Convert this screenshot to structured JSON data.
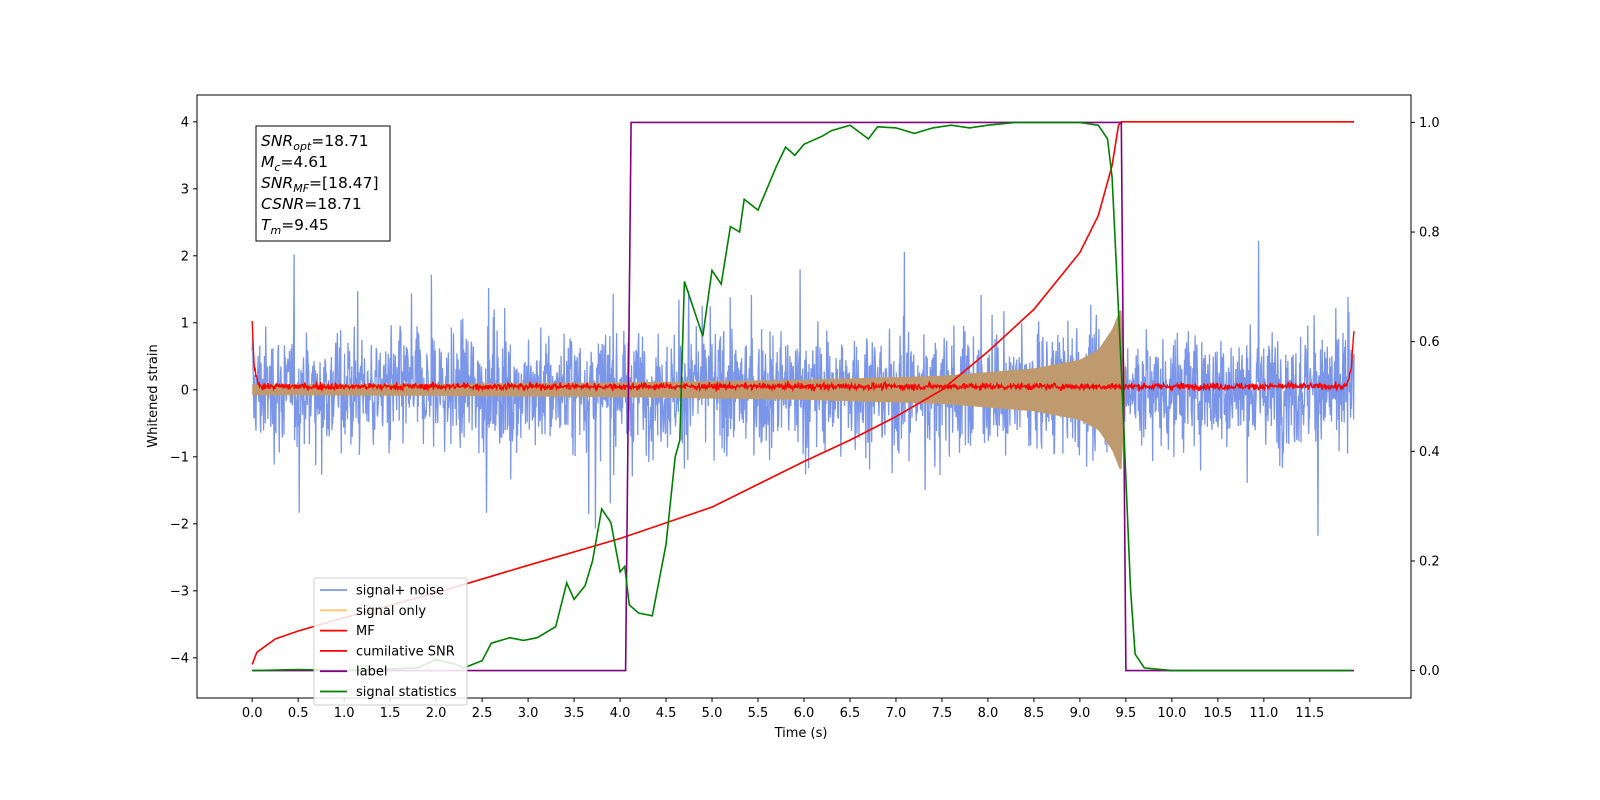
{
  "chart_data": {
    "type": "line",
    "xlabel": "Time (s)",
    "ylabel_left": "Whitened strain",
    "ylabel_right": "",
    "xlim": [
      -0.6,
      12.6
    ],
    "ylim_left": [
      -4.6,
      4.4
    ],
    "ylim_right": [
      -0.05,
      1.05
    ],
    "x_ticks": [
      0.0,
      0.5,
      1.0,
      1.5,
      2.0,
      2.5,
      3.0,
      3.5,
      4.0,
      4.5,
      5.0,
      5.5,
      6.0,
      6.5,
      7.0,
      7.5,
      8.0,
      8.5,
      9.0,
      9.5,
      10.0,
      10.5,
      11.0,
      11.5
    ],
    "x_tick_labels": [
      "0.0",
      "0.5",
      "1.0",
      "1.5",
      "2.0",
      "2.5",
      "3.0",
      "3.5",
      "4.0",
      "4.5",
      "5.0",
      "5.5",
      "6.0",
      "6.5",
      "7.0",
      "7.5",
      "8.0",
      "8.5",
      "9.0",
      "9.5",
      "10.0",
      "10.5",
      "11.0",
      "11.5"
    ],
    "y_left_ticks": [
      4,
      3,
      2,
      1,
      0,
      -1,
      -2,
      -3,
      -4
    ],
    "y_left_tick_labels": [
      "4",
      "3",
      "2",
      "1",
      "0",
      "−1",
      "−2",
      "−3",
      "−4"
    ],
    "y_right_ticks": [
      1.0,
      0.8,
      0.6,
      0.4,
      0.2,
      0.0
    ],
    "y_right_tick_labels": [
      "1.0",
      "0.8",
      "0.6",
      "0.4",
      "0.2",
      "0.0"
    ],
    "grid": false,
    "legend_position": "lower-left",
    "annotation": {
      "lines": [
        {
          "sym": "SNR",
          "sub": "opt",
          "val": "=18.71"
        },
        {
          "sym": "M",
          "sub": "c",
          "val": "=4.61"
        },
        {
          "sym": "SNR",
          "sub": "MF",
          "val": "=[18.47]"
        },
        {
          "sym": "CSNR",
          "sub": "",
          "val": "=18.71"
        },
        {
          "sym": "T",
          "sub": "m",
          "val": "=9.45"
        }
      ]
    },
    "series": [
      {
        "name": "signal+ noise",
        "axis": "left",
        "color": "#7b96e8",
        "kind": "noise-band",
        "x_range": [
          0.0,
          11.98
        ],
        "noise_amplitude_typical": 1.3,
        "noise_amplitude_max": 3.8
      },
      {
        "name": "signal only",
        "axis": "left",
        "color": "#ffc870",
        "fill_color": "#bf9a6f",
        "kind": "chirp-envelope",
        "envelope": [
          [
            0.0,
            0.08
          ],
          [
            2.0,
            0.09
          ],
          [
            4.0,
            0.11
          ],
          [
            6.0,
            0.15
          ],
          [
            7.5,
            0.21
          ],
          [
            8.5,
            0.32
          ],
          [
            9.0,
            0.45
          ],
          [
            9.2,
            0.6
          ],
          [
            9.35,
            0.9
          ],
          [
            9.45,
            1.25
          ],
          [
            9.5,
            0.0
          ]
        ]
      },
      {
        "name": "MF",
        "axis": "left",
        "color": "#ff0000",
        "kind": "noise-trace",
        "points": [
          [
            0.0,
            1.0
          ],
          [
            0.02,
            0.4
          ],
          [
            0.05,
            0.15
          ],
          [
            0.1,
            0.05
          ],
          [
            11.9,
            0.05
          ],
          [
            11.95,
            0.3
          ],
          [
            11.98,
            0.9
          ]
        ],
        "noise_amplitude": 0.07
      },
      {
        "name": "cumilative SNR",
        "axis": "left",
        "color": "#ff0000",
        "points": [
          [
            0.0,
            -4.1
          ],
          [
            0.05,
            -3.92
          ],
          [
            0.25,
            -3.72
          ],
          [
            0.5,
            -3.6
          ],
          [
            1.0,
            -3.4
          ],
          [
            2.0,
            -3.03
          ],
          [
            3.0,
            -2.62
          ],
          [
            4.0,
            -2.22
          ],
          [
            5.0,
            -1.75
          ],
          [
            6.0,
            -1.07
          ],
          [
            6.5,
            -0.75
          ],
          [
            7.0,
            -0.4
          ],
          [
            7.5,
            0.0
          ],
          [
            8.0,
            0.57
          ],
          [
            8.5,
            1.2
          ],
          [
            9.0,
            2.05
          ],
          [
            9.2,
            2.6
          ],
          [
            9.35,
            3.35
          ],
          [
            9.42,
            3.95
          ],
          [
            9.45,
            4.0
          ],
          [
            11.98,
            4.0
          ]
        ]
      },
      {
        "name": "label",
        "axis": "right",
        "color": "#800080",
        "points": [
          [
            0.0,
            0.0
          ],
          [
            4.06,
            0.0
          ],
          [
            4.12,
            1.0
          ],
          [
            9.45,
            1.0
          ],
          [
            9.5,
            0.0
          ],
          [
            11.98,
            0.0
          ]
        ]
      },
      {
        "name": "signal statistics",
        "axis": "right",
        "color": "#008000",
        "points": [
          [
            0.0,
            0.0
          ],
          [
            0.5,
            0.002
          ],
          [
            1.0,
            0.0
          ],
          [
            1.5,
            0.003
          ],
          [
            1.8,
            0.005
          ],
          [
            2.0,
            0.02
          ],
          [
            2.2,
            0.012
          ],
          [
            2.3,
            0.005
          ],
          [
            2.5,
            0.018
          ],
          [
            2.6,
            0.05
          ],
          [
            2.8,
            0.06
          ],
          [
            2.95,
            0.055
          ],
          [
            3.1,
            0.06
          ],
          [
            3.3,
            0.08
          ],
          [
            3.42,
            0.16
          ],
          [
            3.5,
            0.13
          ],
          [
            3.62,
            0.155
          ],
          [
            3.7,
            0.2
          ],
          [
            3.8,
            0.295
          ],
          [
            3.9,
            0.27
          ],
          [
            4.0,
            0.18
          ],
          [
            4.05,
            0.19
          ],
          [
            4.1,
            0.12
          ],
          [
            4.2,
            0.105
          ],
          [
            4.35,
            0.1
          ],
          [
            4.5,
            0.23
          ],
          [
            4.6,
            0.39
          ],
          [
            4.65,
            0.42
          ],
          [
            4.7,
            0.71
          ],
          [
            4.8,
            0.66
          ],
          [
            4.9,
            0.61
          ],
          [
            5.0,
            0.73
          ],
          [
            5.1,
            0.705
          ],
          [
            5.2,
            0.81
          ],
          [
            5.3,
            0.8
          ],
          [
            5.35,
            0.86
          ],
          [
            5.5,
            0.84
          ],
          [
            5.6,
            0.88
          ],
          [
            5.7,
            0.92
          ],
          [
            5.8,
            0.955
          ],
          [
            5.9,
            0.94
          ],
          [
            6.0,
            0.96
          ],
          [
            6.2,
            0.975
          ],
          [
            6.3,
            0.985
          ],
          [
            6.5,
            0.995
          ],
          [
            6.7,
            0.97
          ],
          [
            6.8,
            0.992
          ],
          [
            7.0,
            0.99
          ],
          [
            7.2,
            0.98
          ],
          [
            7.4,
            0.99
          ],
          [
            7.6,
            0.995
          ],
          [
            7.8,
            0.99
          ],
          [
            8.0,
            0.995
          ],
          [
            8.3,
            1.0
          ],
          [
            8.6,
            1.0
          ],
          [
            9.0,
            1.0
          ],
          [
            9.2,
            0.995
          ],
          [
            9.3,
            0.97
          ],
          [
            9.35,
            0.9
          ],
          [
            9.45,
            0.55
          ],
          [
            9.55,
            0.15
          ],
          [
            9.6,
            0.03
          ],
          [
            9.7,
            0.005
          ],
          [
            10.0,
            0.0
          ],
          [
            11.95,
            0.0
          ]
        ]
      }
    ]
  }
}
